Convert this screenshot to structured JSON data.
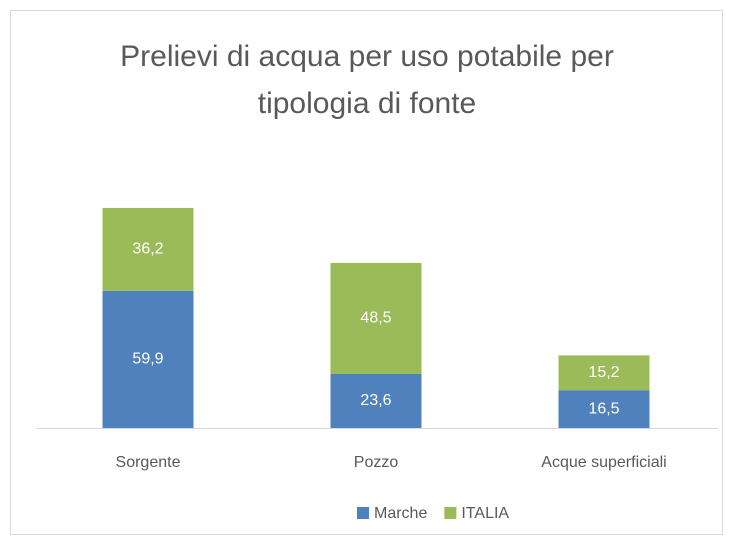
{
  "chart_data": {
    "type": "stacked_bar",
    "title": "Prelievi di acqua per uso potabile per tipologia di fonte",
    "categories": [
      "Sorgente",
      "Pozzo",
      "Acque superficiali"
    ],
    "series": [
      {
        "name": "Marche",
        "color": "#4f81bd",
        "values": [
          59.9,
          23.6,
          16.5
        ],
        "value_labels": [
          "59,9",
          "23,6",
          "16,5"
        ]
      },
      {
        "name": "ITALIA",
        "color": "#9bbb59",
        "values": [
          36.2,
          48.5,
          15.2
        ],
        "value_labels": [
          "36,2",
          "48,5",
          "15,2"
        ]
      }
    ],
    "ylim": [
      0,
      100
    ],
    "legend": "bottom"
  }
}
